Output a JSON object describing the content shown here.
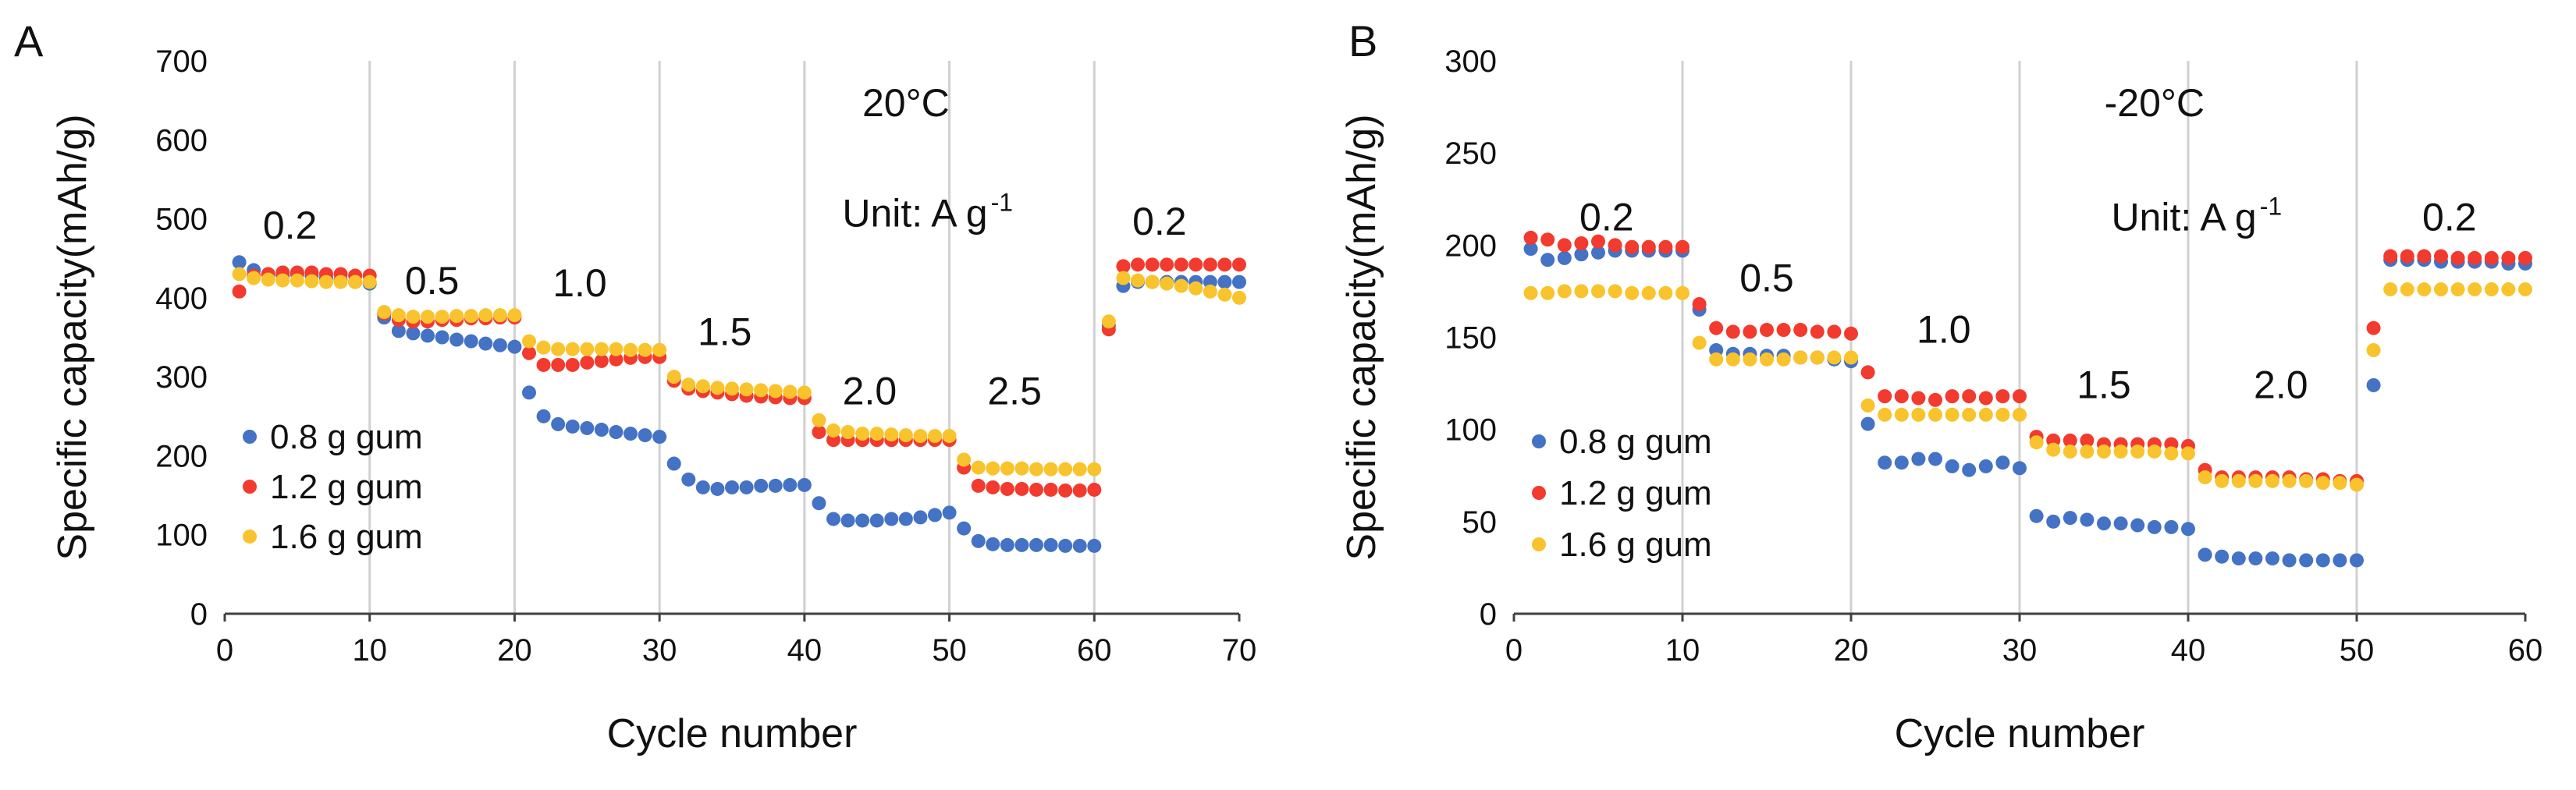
{
  "colors": {
    "0.8 g gum": "#4472C4",
    "1.2 g gum": "#F23A2E",
    "1.6 g gum": "#F8C32C",
    "gridline": "#D0D0D0",
    "axis": "#404040"
  },
  "chart_data": [
    {
      "panel": "A",
      "type": "scatter",
      "title": "",
      "xlabel": "Cycle number",
      "ylabel": "Specific capacity(mAh/g)",
      "xlim": [
        0,
        70
      ],
      "ylim": [
        0,
        700
      ],
      "xticks": [
        0,
        10,
        20,
        30,
        40,
        50,
        60,
        70
      ],
      "yticks": [
        0,
        100,
        200,
        300,
        400,
        500,
        600,
        700
      ],
      "vertical_gridlines": [
        10,
        20,
        30,
        40,
        50,
        60
      ],
      "legend_position": "left",
      "annotations": [
        {
          "text": "20°C",
          "x": 47,
          "y": 630
        },
        {
          "text": "Unit: A g",
          "sup": "-1",
          "x": 48.5,
          "y": 490
        },
        {
          "text": "0.2",
          "x": 4.5,
          "y": 475
        },
        {
          "text": "0.5",
          "x": 14.3,
          "y": 405
        },
        {
          "text": "1.0",
          "x": 24.5,
          "y": 402
        },
        {
          "text": "1.5",
          "x": 34.5,
          "y": 340
        },
        {
          "text": "2.0",
          "x": 44.5,
          "y": 265
        },
        {
          "text": "2.5",
          "x": 54.5,
          "y": 265
        },
        {
          "text": "0.2",
          "x": 64.5,
          "y": 480
        }
      ],
      "series": [
        {
          "name": "0.8 g gum",
          "x": [
            1,
            2,
            3,
            4,
            5,
            6,
            7,
            8,
            9,
            10,
            11,
            12,
            13,
            14,
            15,
            16,
            17,
            18,
            19,
            20,
            21,
            22,
            23,
            24,
            25,
            26,
            27,
            28,
            29,
            30,
            31,
            32,
            33,
            34,
            35,
            36,
            37,
            38,
            39,
            40,
            41,
            42,
            43,
            44,
            45,
            46,
            47,
            48,
            49,
            50,
            51,
            52,
            53,
            54,
            55,
            56,
            57,
            58,
            59,
            60,
            61,
            62,
            63,
            64,
            65,
            66,
            67,
            68,
            69,
            70
          ],
          "y": [
            445,
            435,
            430,
            428,
            430,
            428,
            425,
            422,
            420,
            418,
            375,
            358,
            355,
            352,
            350,
            347,
            345,
            342,
            340,
            338,
            280,
            250,
            240,
            237,
            235,
            233,
            230,
            228,
            226,
            224,
            190,
            170,
            160,
            158,
            160,
            160,
            162,
            162,
            163,
            163,
            140,
            120,
            118,
            118,
            118,
            120,
            120,
            122,
            125,
            128,
            108,
            92,
            88,
            87,
            87,
            87,
            87,
            86,
            86,
            86,
            365,
            415,
            420,
            420,
            420,
            420,
            420,
            420,
            420,
            420
          ]
        },
        {
          "name": "1.2 g gum",
          "x": [
            1,
            2,
            3,
            4,
            5,
            6,
            7,
            8,
            9,
            10,
            11,
            12,
            13,
            14,
            15,
            16,
            17,
            18,
            19,
            20,
            21,
            22,
            23,
            24,
            25,
            26,
            27,
            28,
            29,
            30,
            31,
            32,
            33,
            34,
            35,
            36,
            37,
            38,
            39,
            40,
            41,
            42,
            43,
            44,
            45,
            46,
            47,
            48,
            49,
            50,
            51,
            52,
            53,
            54,
            55,
            56,
            57,
            58,
            59,
            60,
            61,
            62,
            63,
            64,
            65,
            66,
            67,
            68,
            69,
            70
          ],
          "y": [
            408,
            428,
            430,
            432,
            432,
            432,
            430,
            430,
            428,
            428,
            380,
            372,
            370,
            370,
            372,
            372,
            374,
            374,
            375,
            375,
            330,
            315,
            315,
            315,
            318,
            320,
            322,
            324,
            325,
            325,
            295,
            285,
            282,
            280,
            278,
            276,
            275,
            274,
            273,
            273,
            230,
            220,
            220,
            220,
            220,
            220,
            220,
            220,
            220,
            220,
            185,
            162,
            160,
            158,
            158,
            157,
            157,
            156,
            156,
            157,
            360,
            440,
            442,
            442,
            442,
            442,
            442,
            442,
            442,
            442
          ]
        },
        {
          "name": "1.6 g gum",
          "x": [
            1,
            2,
            3,
            4,
            5,
            6,
            7,
            8,
            9,
            10,
            11,
            12,
            13,
            14,
            15,
            16,
            17,
            18,
            19,
            20,
            21,
            22,
            23,
            24,
            25,
            26,
            27,
            28,
            29,
            30,
            31,
            32,
            33,
            34,
            35,
            36,
            37,
            38,
            39,
            40,
            41,
            42,
            43,
            44,
            45,
            46,
            47,
            48,
            49,
            50,
            51,
            52,
            53,
            54,
            55,
            56,
            57,
            58,
            59,
            60,
            61,
            62,
            63,
            64,
            65,
            66,
            67,
            68,
            69,
            70
          ],
          "y": [
            430,
            425,
            423,
            422,
            422,
            421,
            420,
            420,
            420,
            420,
            382,
            378,
            376,
            376,
            376,
            377,
            377,
            378,
            378,
            378,
            345,
            337,
            335,
            335,
            335,
            335,
            335,
            334,
            334,
            334,
            300,
            290,
            288,
            286,
            285,
            284,
            283,
            282,
            281,
            280,
            245,
            232,
            230,
            228,
            228,
            227,
            226,
            225,
            225,
            225,
            195,
            185,
            184,
            184,
            184,
            183,
            183,
            183,
            183,
            183,
            370,
            425,
            422,
            420,
            418,
            415,
            412,
            408,
            404,
            400
          ]
        }
      ]
    },
    {
      "panel": "B",
      "type": "scatter",
      "title": "",
      "xlabel": "Cycle number",
      "ylabel": "Specific capacity(mAh/g)",
      "xlim": [
        0,
        60
      ],
      "ylim": [
        0,
        300
      ],
      "xticks": [
        0,
        10,
        20,
        30,
        40,
        50,
        60
      ],
      "yticks": [
        0,
        50,
        100,
        150,
        200,
        250,
        300
      ],
      "vertical_gridlines": [
        10,
        20,
        30,
        40,
        50
      ],
      "legend_position": "left",
      "annotations": [
        {
          "text": "-20°C",
          "x": 38,
          "y": 270
        },
        {
          "text": "Unit: A g",
          "sup": "-1",
          "x": 40.5,
          "y": 208
        },
        {
          "text": "0.2",
          "x": 5.5,
          "y": 208
        },
        {
          "text": "0.5",
          "x": 15,
          "y": 175
        },
        {
          "text": "1.0",
          "x": 25.5,
          "y": 147
        },
        {
          "text": "1.5",
          "x": 35,
          "y": 117
        },
        {
          "text": "2.0",
          "x": 45.5,
          "y": 117
        },
        {
          "text": "0.2",
          "x": 55.5,
          "y": 208
        }
      ],
      "series": [
        {
          "name": "0.8 g gum",
          "x": [
            1,
            2,
            3,
            4,
            5,
            6,
            7,
            8,
            9,
            10,
            11,
            12,
            13,
            14,
            15,
            16,
            17,
            18,
            19,
            20,
            21,
            22,
            23,
            24,
            25,
            26,
            27,
            28,
            29,
            30,
            31,
            32,
            33,
            34,
            35,
            36,
            37,
            38,
            39,
            40,
            41,
            42,
            43,
            44,
            45,
            46,
            47,
            48,
            49,
            50,
            51,
            52,
            53,
            54,
            55,
            56,
            57,
            58,
            59,
            60
          ],
          "y": [
            198,
            192,
            193,
            195,
            196,
            197,
            197,
            197,
            197,
            197,
            165,
            143,
            141,
            141,
            140,
            140,
            139,
            139,
            138,
            137,
            103,
            82,
            82,
            84,
            84,
            80,
            78,
            80,
            82,
            79,
            53,
            50,
            52,
            51,
            49,
            49,
            48,
            47,
            47,
            46,
            32,
            31,
            30,
            30,
            30,
            29,
            29,
            29,
            29,
            29,
            124,
            192,
            192,
            192,
            191,
            191,
            191,
            191,
            190,
            190
          ]
        },
        {
          "name": "1.2 g gum",
          "x": [
            1,
            2,
            3,
            4,
            5,
            6,
            7,
            8,
            9,
            10,
            11,
            12,
            13,
            14,
            15,
            16,
            17,
            18,
            19,
            20,
            21,
            22,
            23,
            24,
            25,
            26,
            27,
            28,
            29,
            30,
            31,
            32,
            33,
            34,
            35,
            36,
            37,
            38,
            39,
            40,
            41,
            42,
            43,
            44,
            45,
            46,
            47,
            48,
            49,
            50,
            51,
            52,
            53,
            54,
            55,
            56,
            57,
            58,
            59,
            60
          ],
          "y": [
            204,
            203,
            200,
            201,
            202,
            200,
            199,
            199,
            199,
            199,
            168,
            155,
            153,
            153,
            154,
            154,
            154,
            153,
            153,
            152,
            131,
            118,
            118,
            117,
            116,
            118,
            118,
            117,
            118,
            118,
            96,
            94,
            94,
            94,
            92,
            92,
            92,
            92,
            92,
            91,
            78,
            74,
            74,
            74,
            74,
            74,
            73,
            73,
            72,
            72,
            155,
            194,
            194,
            194,
            194,
            193,
            193,
            193,
            193,
            193
          ]
        },
        {
          "name": "1.6 g gum",
          "x": [
            1,
            2,
            3,
            4,
            5,
            6,
            7,
            8,
            9,
            10,
            11,
            12,
            13,
            14,
            15,
            16,
            17,
            18,
            19,
            20,
            21,
            22,
            23,
            24,
            25,
            26,
            27,
            28,
            29,
            30,
            31,
            32,
            33,
            34,
            35,
            36,
            37,
            38,
            39,
            40,
            41,
            42,
            43,
            44,
            45,
            46,
            47,
            48,
            49,
            50,
            51,
            52,
            53,
            54,
            55,
            56,
            57,
            58,
            59,
            60
          ],
          "y": [
            174,
            174,
            175,
            175,
            175,
            175,
            174,
            174,
            174,
            174,
            147,
            138,
            138,
            138,
            138,
            138,
            139,
            139,
            139,
            139,
            113,
            108,
            108,
            108,
            108,
            108,
            108,
            108,
            108,
            108,
            93,
            89,
            88,
            88,
            88,
            88,
            88,
            88,
            87,
            87,
            74,
            72,
            72,
            72,
            72,
            72,
            72,
            71,
            71,
            70,
            143,
            176,
            176,
            176,
            176,
            176,
            176,
            176,
            176,
            176
          ]
        }
      ]
    }
  ]
}
